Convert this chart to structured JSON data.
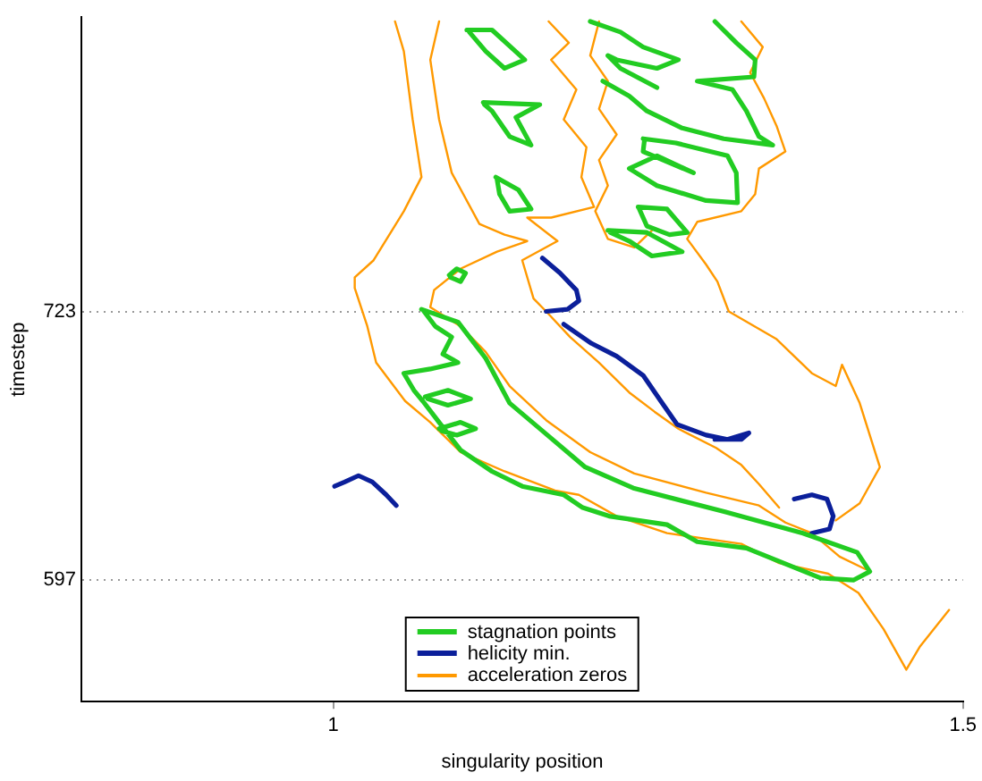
{
  "chart_data": {
    "type": "line",
    "xlabel": "singularity position",
    "ylabel": "timestep",
    "xlim": [
      0.8,
      1.5
    ],
    "ylim": [
      540,
      861
    ],
    "xticks": [
      1,
      1.5
    ],
    "yticks": [
      597,
      723
    ],
    "grid": "y",
    "legend": "bottom",
    "marker": "none",
    "line_style": "solid",
    "series": [
      {
        "name": "stagnation points",
        "color": "#22cc22",
        "x": [
          1.07,
          1.099,
          1.121,
          1.14,
          1.166,
          1.2,
          1.239,
          1.311,
          1.373,
          1.416,
          1.426,
          1.413,
          1.387,
          1.328,
          1.289,
          1.265,
          1.219,
          1.198,
          1.183,
          1.15,
          1.126,
          1.101,
          1.084,
          1.071,
          1.064,
          1.056,
          1.077,
          1.099,
          1.087,
          1.094,
          1.081,
          1.072,
          null,
          1.073,
          1.091,
          1.109,
          1.091,
          1.075,
          null,
          1.084,
          1.101,
          1.113,
          1.098,
          1.086,
          null,
          1.092,
          1.098,
          1.105,
          1.101,
          1.093,
          null,
          1.106,
          1.126,
          1.152,
          1.136,
          1.121,
          1.108,
          null,
          1.119,
          1.164,
          1.145,
          1.157,
          1.14,
          1.126,
          1.12,
          null,
          1.129,
          1.147,
          1.157,
          1.14,
          1.132,
          1.13,
          null,
          1.204,
          1.228,
          1.246,
          1.274,
          1.257,
          1.225,
          1.218,
          1.228,
          1.257,
          null,
          1.214,
          1.235,
          1.249,
          1.277,
          1.31,
          1.349,
          1.338,
          1.328,
          1.317,
          1.289,
          1.334,
          1.335,
          1.32,
          1.303,
          null,
          1.246,
          1.272,
          1.313,
          1.32,
          1.321,
          1.296,
          1.257,
          1.235,
          1.257,
          1.286,
          1.246,
          1.247,
          null,
          1.242,
          1.265,
          1.281,
          1.267,
          1.249,
          1.243,
          null,
          1.218,
          1.249,
          1.277,
          1.253,
          1.235,
          1.22
        ],
        "values": [
          724,
          718,
          701,
          680,
          667,
          650,
          640,
          629,
          619,
          610,
          601,
          597,
          598,
          612,
          615,
          623,
          627,
          631,
          637,
          641,
          648,
          658,
          671,
          681,
          686,
          694,
          696,
          699,
          703,
          711,
          716,
          723,
          null,
          683,
          686,
          682,
          679,
          682,
          null,
          668,
          671,
          668,
          665,
          667,
          null,
          740,
          743,
          741,
          737,
          739,
          null,
          855,
          855,
          841,
          837,
          845,
          854,
          null,
          821,
          820,
          814,
          801,
          805,
          817,
          820,
          null,
          786,
          780,
          771,
          770,
          778,
          785,
          null,
          859,
          854,
          847,
          841,
          837,
          841,
          843,
          837,
          828,
          null,
          831,
          824,
          817,
          809,
          804,
          801,
          805,
          817,
          827,
          831,
          833,
          841,
          849,
          859,
          null,
          804,
          802,
          796,
          788,
          774,
          775,
          782,
          790,
          796,
          788,
          798,
          803,
          null,
          772,
          771,
          760,
          759,
          763,
          771,
          null,
          761,
          760,
          751,
          749,
          756,
          760
        ]
      },
      {
        "name": "helicity min.",
        "color": "#0b1f9a",
        "x": [
          1.001,
          1.009,
          1.02,
          1.031,
          1.042,
          1.05,
          null,
          1.166,
          1.18,
          1.193,
          1.195,
          1.186,
          1.169,
          null,
          1.183,
          1.205,
          1.225,
          1.246,
          1.26,
          1.273,
          1.296,
          1.313,
          1.33,
          1.324,
          1.303,
          null,
          1.366,
          1.38,
          1.392,
          1.397,
          1.394,
          1.38
        ],
        "values": [
          641,
          643,
          646,
          643,
          637,
          632,
          null,
          748,
          741,
          733,
          728,
          724,
          723,
          null,
          717,
          708,
          702,
          693,
          681,
          670,
          665,
          663,
          666,
          663,
          663,
          null,
          635,
          637,
          635,
          627,
          621,
          619
        ]
      },
      {
        "name": "acceleration zeros",
        "color": "#ff9900",
        "x": [
          1.049,
          1.056,
          1.063,
          1.07,
          1.056,
          1.032,
          1.017,
          1.017,
          1.027,
          1.034,
          1.057,
          1.077,
          1.101,
          1.136,
          1.176,
          1.195,
          1.225,
          1.265,
          1.324,
          1.354,
          1.393,
          1.417,
          1.437,
          1.455,
          1.466,
          1.489,
          null,
          1.084,
          1.077,
          1.084,
          1.094,
          1.116,
          1.136,
          1.154,
          1.13,
          1.101,
          1.08,
          1.077,
          1.101,
          1.121,
          1.14,
          1.169,
          1.204,
          1.239,
          1.296,
          1.338,
          1.359,
          1.38,
          1.402,
          1.423,
          null,
          1.171,
          1.187,
          1.173,
          1.193,
          1.183,
          1.201,
          1.197,
          1.207,
          1.173,
          1.154,
          1.178,
          1.15,
          1.159,
          1.169,
          1.188,
          1.211,
          1.235,
          1.255,
          1.274,
          1.304,
          1.324,
          1.338,
          1.354,
          null,
          1.324,
          1.341,
          1.331,
          1.342,
          1.352,
          1.359,
          1.338,
          1.335,
          1.324,
          1.289,
          1.281,
          1.296,
          1.305,
          1.314,
          1.352,
          1.38,
          1.399,
          1.404,
          1.418,
          1.434,
          1.418,
          1.399,
          null,
          1.211,
          1.204,
          1.218,
          1.211,
          1.225,
          1.211,
          1.218,
          1.208,
          1.218,
          1.239,
          1.253
        ],
        "values": [
          859,
          845,
          813,
          786,
          770,
          747,
          739,
          734,
          716,
          699,
          681,
          671,
          657,
          648,
          639,
          637,
          627,
          619,
          614,
          605,
          600,
          591,
          574,
          555,
          566,
          583,
          null,
          859,
          841,
          813,
          788,
          764,
          759,
          756,
          751,
          743,
          733,
          725,
          716,
          704,
          688,
          672,
          657,
          647,
          638,
          632,
          624,
          619,
          608,
          602,
          null,
          859,
          849,
          841,
          827,
          813,
          800,
          786,
          772,
          767,
          767,
          756,
          747,
          729,
          723,
          711,
          699,
          685,
          676,
          668,
          659,
          651,
          642,
          631,
          null,
          859,
          847,
          835,
          823,
          810,
          798,
          790,
          778,
          770,
          765,
          757,
          745,
          737,
          723,
          710,
          694,
          688,
          698,
          680,
          650,
          633,
          625,
          null,
          859,
          843,
          831,
          818,
          806,
          794,
          782,
          770,
          757,
          753,
          761
        ]
      }
    ]
  }
}
